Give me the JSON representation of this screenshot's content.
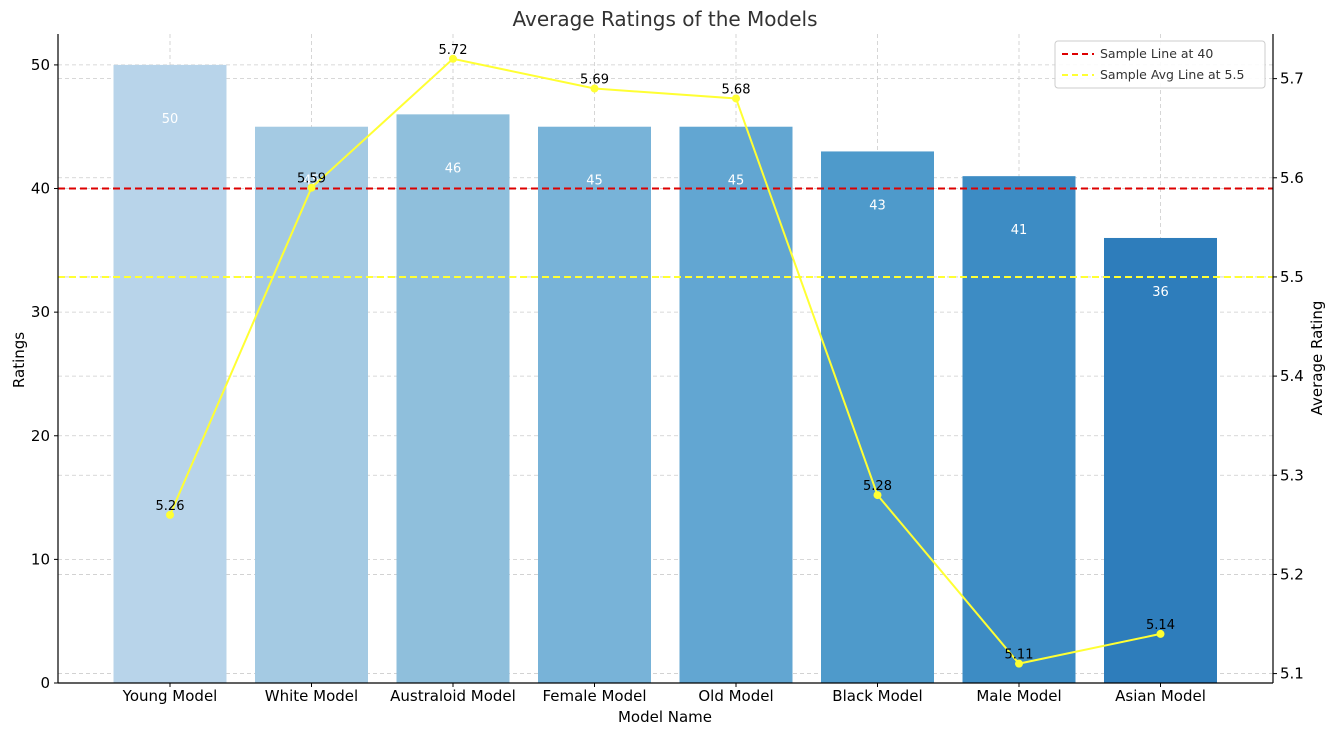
{
  "chart_data": {
    "type": "bar",
    "title": "Average Ratings of the Models",
    "xlabel": "Model Name",
    "ylabel": "Ratings",
    "y2label": "Average Rating",
    "categories": [
      "Young Model",
      "White Model",
      "Australoid Model",
      "Female Model",
      "Old Model",
      "Black Model",
      "Male Model",
      "Asian Model"
    ],
    "values": [
      50,
      45,
      46,
      45,
      45,
      43,
      41,
      36
    ],
    "bar_labels": [
      "50",
      "45",
      "46",
      "45",
      "45",
      "43",
      "41",
      "36"
    ],
    "bar_colors": [
      "#b8d4ea",
      "#a4cae3",
      "#8fbfdc",
      "#78b3d8",
      "#62a6d2",
      "#4e9acb",
      "#3d8cc4",
      "#2e7dbb"
    ],
    "line_series": {
      "values": [
        5.26,
        5.59,
        5.72,
        5.69,
        5.68,
        5.28,
        5.11,
        5.14
      ],
      "labels": [
        "5.26",
        "5.59",
        "5.72",
        "5.69",
        "5.68",
        "5.28",
        "5.11",
        "5.14"
      ],
      "color": "#ffff33"
    },
    "ylim": [
      0,
      52.5
    ],
    "y2lim": [
      5.0905,
      5.745
    ],
    "yticks": [
      0,
      10,
      20,
      30,
      40,
      50
    ],
    "ytick_labels": [
      "0",
      "10",
      "20",
      "30",
      "40",
      "50"
    ],
    "y2ticks": [
      5.1,
      5.2,
      5.3,
      5.4,
      5.5,
      5.6,
      5.7
    ],
    "y2tick_labels": [
      "5.1",
      "5.2",
      "5.3",
      "5.4",
      "5.5",
      "5.6",
      "5.7"
    ],
    "reference_lines": [
      {
        "axis": "left",
        "value": 40,
        "color": "#dd0000",
        "label": "Sample Line at 40"
      },
      {
        "axis": "right",
        "value": 5.5,
        "color": "#ffff33",
        "label": "Sample Avg Line at 5.5"
      }
    ],
    "grid": true,
    "legend_position": "top-right"
  }
}
